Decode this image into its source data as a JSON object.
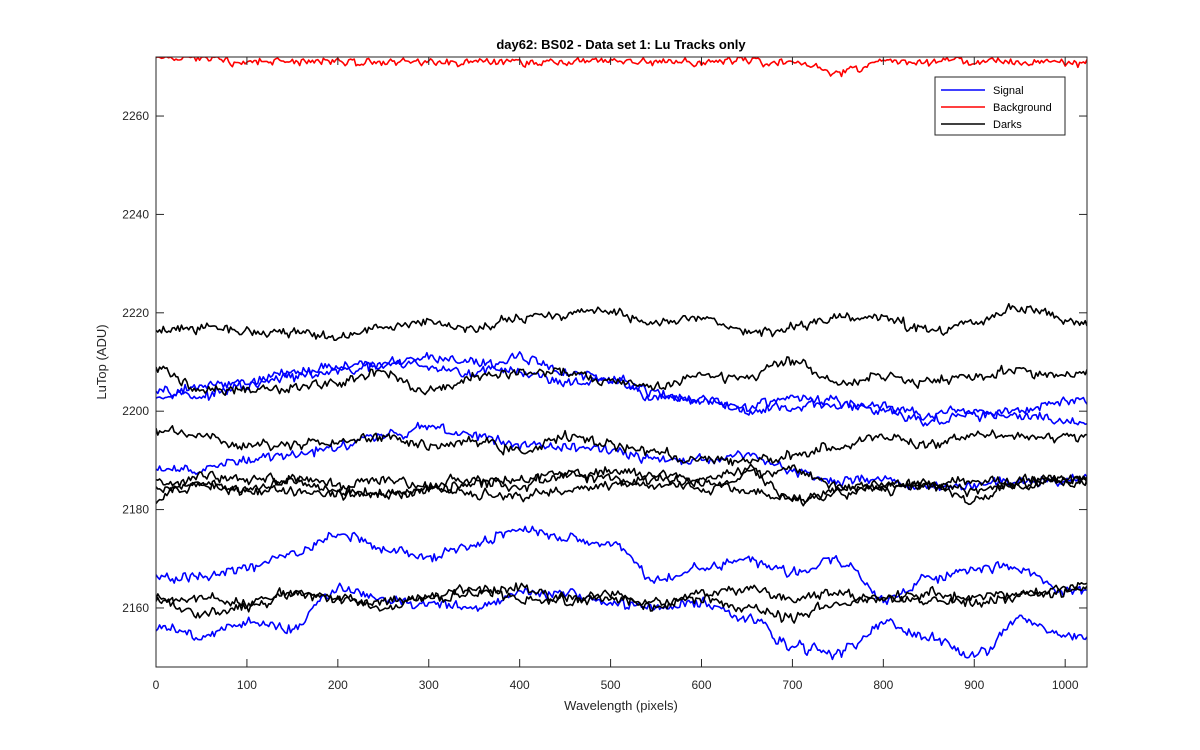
{
  "chart_data": {
    "type": "line",
    "title": "day62: BS02 - Data set 1: Lu Tracks only",
    "xlabel": "Wavelength (pixels)",
    "ylabel": "LuTop (ADU)",
    "xlim": [
      0,
      1024
    ],
    "ylim": [
      2148,
      2272
    ],
    "xticks": [
      0,
      100,
      200,
      300,
      400,
      500,
      600,
      700,
      800,
      900,
      1000
    ],
    "yticks": [
      2160,
      2180,
      2200,
      2220,
      2240,
      2260
    ],
    "grid": false,
    "legend_position": "top-right",
    "legend": [
      {
        "label": "Signal",
        "color": "#0000ff"
      },
      {
        "label": "Background",
        "color": "#ff0000"
      },
      {
        "label": "Darks",
        "color": "#000000"
      }
    ],
    "x": [
      0,
      50,
      100,
      150,
      200,
      250,
      300,
      350,
      400,
      450,
      500,
      550,
      600,
      650,
      700,
      750,
      800,
      850,
      900,
      950,
      1000,
      1024
    ],
    "series": [
      {
        "group": "Signal",
        "color": "#0000ff",
        "values": [
          2205,
          2203,
          2205,
          2207,
          2208,
          2209,
          2211,
          2210,
          2208,
          2206,
          2206,
          2203,
          2202,
          2201,
          2203,
          2201,
          2201,
          2199,
          2200,
          2199,
          2198,
          2197
        ]
      },
      {
        "group": "Signal",
        "color": "#0000ff",
        "values": [
          2203,
          2205,
          2206,
          2208,
          2209,
          2210,
          2209,
          2208,
          2211,
          2208,
          2206,
          2204,
          2202,
          2200,
          2201,
          2202,
          2200,
          2198,
          2199,
          2200,
          2202,
          2203
        ]
      },
      {
        "group": "Signal",
        "color": "#0000ff",
        "values": [
          2188,
          2188,
          2190,
          2191,
          2193,
          2195,
          2197,
          2195,
          2193,
          2193,
          2192,
          2190,
          2190,
          2191,
          2188,
          2186,
          2186,
          2185,
          2185,
          2186,
          2186,
          2186
        ]
      },
      {
        "group": "Signal",
        "color": "#0000ff",
        "values": [
          2166,
          2166,
          2168,
          2171,
          2175,
          2172,
          2170,
          2173,
          2176,
          2174,
          2173,
          2166,
          2168,
          2170,
          2167,
          2170,
          2162,
          2166,
          2168,
          2168,
          2163,
          2164
        ]
      },
      {
        "group": "Signal",
        "color": "#0000ff",
        "values": [
          2156,
          2154,
          2157,
          2156,
          2164,
          2162,
          2161,
          2160,
          2163,
          2163,
          2161,
          2160,
          2161,
          2158,
          2152,
          2151,
          2157,
          2154,
          2150,
          2158,
          2154,
          2154
        ]
      },
      {
        "group": "Background",
        "color": "#ff0000",
        "values": [
          2272,
          2272,
          2271,
          2271,
          2271,
          2271,
          2271,
          2271,
          2271,
          2271,
          2271,
          2271,
          2271,
          2271,
          2271,
          2269,
          2271,
          2271,
          2271,
          2271,
          2271,
          2271
        ]
      },
      {
        "group": "Darks",
        "color": "#000000",
        "values": [
          2216,
          2217,
          2216,
          2216,
          2215,
          2217,
          2218,
          2217,
          2219,
          2220,
          2220,
          2218,
          2219,
          2216,
          2217,
          2219,
          2219,
          2216,
          2218,
          2221,
          2219,
          2218
        ]
      },
      {
        "group": "Darks",
        "color": "#000000",
        "values": [
          2209,
          2204,
          2204,
          2205,
          2206,
          2208,
          2204,
          2207,
          2208,
          2208,
          2206,
          2205,
          2207,
          2207,
          2210,
          2206,
          2207,
          2206,
          2207,
          2208,
          2207,
          2208
        ]
      },
      {
        "group": "Darks",
        "color": "#000000",
        "values": [
          2196,
          2195,
          2193,
          2193,
          2194,
          2195,
          2193,
          2194,
          2192,
          2195,
          2193,
          2192,
          2190,
          2190,
          2191,
          2193,
          2195,
          2193,
          2195,
          2195,
          2195,
          2195
        ]
      },
      {
        "group": "Darks",
        "color": "#000000",
        "values": [
          2186,
          2185,
          2184,
          2186,
          2184,
          2183,
          2184,
          2185,
          2186,
          2187,
          2188,
          2187,
          2186,
          2188,
          2182,
          2183,
          2185,
          2185,
          2186,
          2185,
          2186,
          2186
        ]
      },
      {
        "group": "Darks",
        "color": "#000000",
        "values": [
          2184,
          2185,
          2184,
          2184,
          2183,
          2183,
          2184,
          2183,
          2183,
          2184,
          2185,
          2186,
          2184,
          2187,
          2188,
          2185,
          2184,
          2185,
          2184,
          2185,
          2186,
          2186
        ]
      },
      {
        "group": "Darks",
        "color": "#000000",
        "values": [
          2182,
          2187,
          2186,
          2186,
          2185,
          2186,
          2185,
          2186,
          2185,
          2187,
          2186,
          2185,
          2186,
          2184,
          2182,
          2184,
          2185,
          2185,
          2182,
          2186,
          2186,
          2186
        ]
      },
      {
        "group": "Darks",
        "color": "#000000",
        "values": [
          2162,
          2159,
          2160,
          2163,
          2162,
          2160,
          2162,
          2163,
          2164,
          2162,
          2163,
          2160,
          2163,
          2164,
          2162,
          2163,
          2162,
          2163,
          2162,
          2163,
          2164,
          2165
        ]
      },
      {
        "group": "Darks",
        "color": "#000000",
        "values": [
          2161,
          2162,
          2161,
          2163,
          2162,
          2161,
          2162,
          2164,
          2162,
          2161,
          2162,
          2161,
          2162,
          2160,
          2158,
          2161,
          2162,
          2162,
          2161,
          2162,
          2163,
          2164
        ]
      }
    ]
  }
}
